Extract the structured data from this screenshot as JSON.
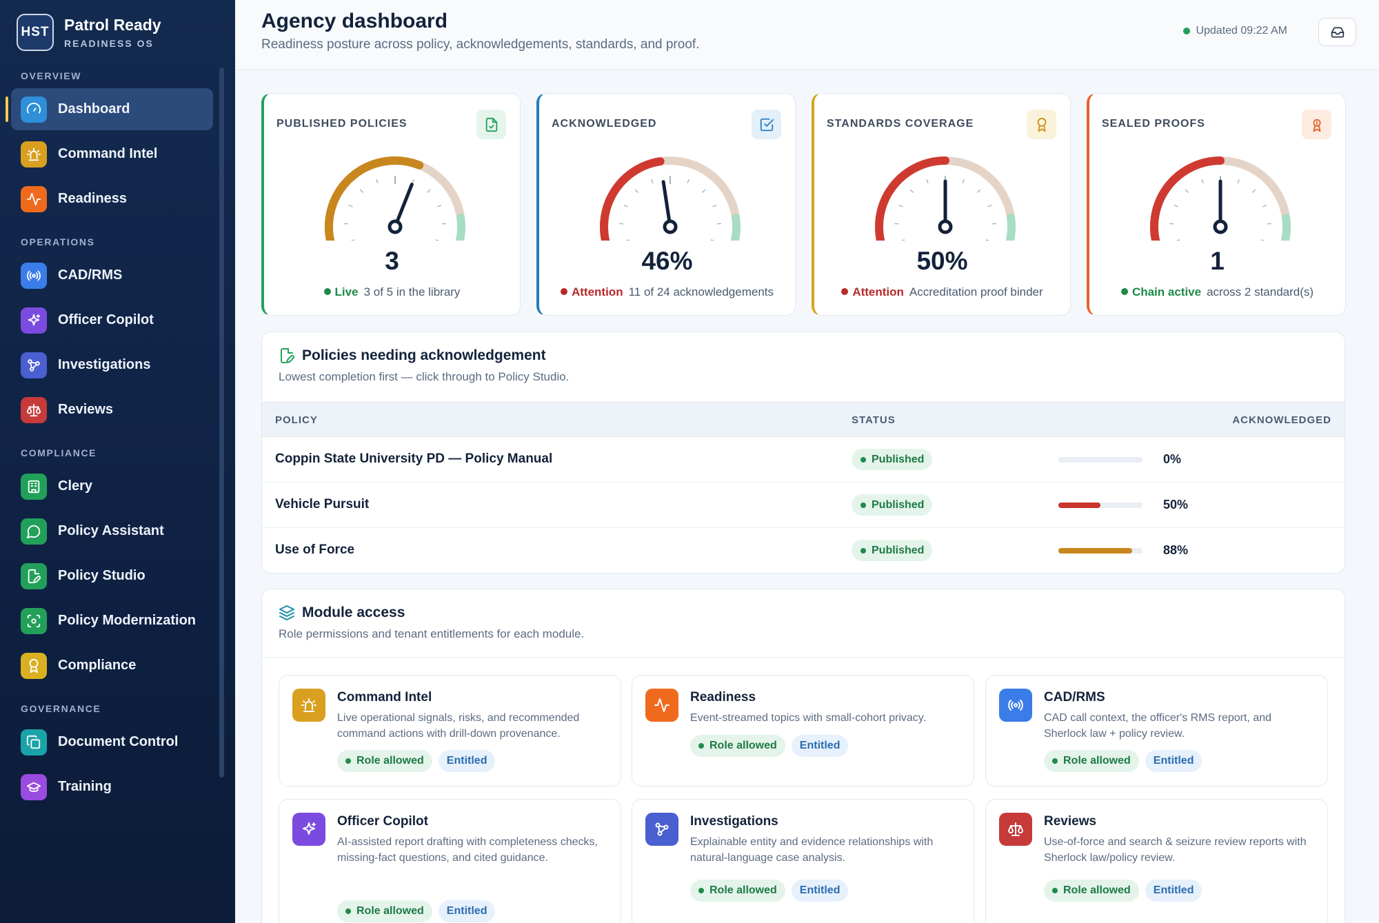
{
  "brand": {
    "logo_text": "HST",
    "title": "Patrol Ready",
    "subtitle": "READINESS OS"
  },
  "sidebar": {
    "sections": [
      {
        "label": "OVERVIEW",
        "items": [
          {
            "label": "Dashboard",
            "icon": "gauge-icon",
            "color": "#2f8fd8",
            "active": true
          },
          {
            "label": "Command Intel",
            "icon": "siren-icon",
            "color": "#d9a020"
          },
          {
            "label": "Readiness",
            "icon": "activity-icon",
            "color": "#f06a1d"
          }
        ]
      },
      {
        "label": "OPERATIONS",
        "items": [
          {
            "label": "CAD/RMS",
            "icon": "radio-icon",
            "color": "#3b7de8"
          },
          {
            "label": "Officer Copilot",
            "icon": "sparkles-icon",
            "color": "#7b4be0"
          },
          {
            "label": "Investigations",
            "icon": "network-icon",
            "color": "#4a5fd0"
          },
          {
            "label": "Reviews",
            "icon": "scale-icon",
            "color": "#c63a3a"
          }
        ]
      },
      {
        "label": "COMPLIANCE",
        "items": [
          {
            "label": "Clery",
            "icon": "building-icon",
            "color": "#22a05a"
          },
          {
            "label": "Policy Assistant",
            "icon": "chat-icon",
            "color": "#22a05a"
          },
          {
            "label": "Policy Studio",
            "icon": "file-edit-icon",
            "color": "#22a05a"
          },
          {
            "label": "Policy Modernization",
            "icon": "scan-icon",
            "color": "#22a05a"
          },
          {
            "label": "Compliance",
            "icon": "award-icon",
            "color": "#d9b020"
          }
        ]
      },
      {
        "label": "GOVERNANCE",
        "items": [
          {
            "label": "Document Control",
            "icon": "copy-icon",
            "color": "#1aa3a8"
          },
          {
            "label": "Training",
            "icon": "graduation-cap-icon",
            "color": "#9a4be0"
          }
        ]
      }
    ]
  },
  "header": {
    "title": "Agency dashboard",
    "subtitle": "Readiness posture across policy, acknowledgements, standards, and proof.",
    "updated": "Updated 09:22 AM"
  },
  "kpis": [
    {
      "label": "PUBLISHED POLICIES",
      "value": "3",
      "level": 0.6,
      "status": "Live",
      "status_color": "#1d8a48",
      "detail": "3 of 5 in the library",
      "accent": "#22a05a",
      "arc_color": "#c8861e",
      "icon": "file-check-icon",
      "icon_color": "#22a05a",
      "icon_bg": "#e6f5ec"
    },
    {
      "label": "ACKNOWLEDGED",
      "value": "46%",
      "level": 0.46,
      "status": "Attention",
      "status_color": "#b9282a",
      "detail": "11 of 24 acknowledgements",
      "accent": "#1e7fb8",
      "arc_color": "#cf3a30",
      "icon": "check-square-icon",
      "icon_color": "#2b7fc2",
      "icon_bg": "#e3f0fa"
    },
    {
      "label": "STANDARDS COVERAGE",
      "value": "50%",
      "level": 0.5,
      "status": "Attention",
      "status_color": "#b9282a",
      "detail": "Accreditation proof binder",
      "accent": "#d9a41e",
      "arc_color": "#cf3a30",
      "icon": "award-icon",
      "icon_color": "#c99312",
      "icon_bg": "#fbf2dc"
    },
    {
      "label": "SEALED PROOFS",
      "value": "1",
      "level": 0.5,
      "status": "Chain active",
      "status_color": "#1d8a48",
      "detail": "across 2 standard(s)",
      "accent": "#e8622a",
      "arc_color": "#cf3a30",
      "icon": "ribbon-icon",
      "icon_color": "#e0622a",
      "icon_bg": "#fdebe2"
    }
  ],
  "policies": {
    "title": "Policies needing acknowledgement",
    "subtitle": "Lowest completion first — click through to Policy Studio.",
    "columns": [
      "POLICY",
      "STATUS",
      "ACKNOWLEDGED"
    ],
    "rows": [
      {
        "name": "Coppin State University PD — Policy Manual",
        "status": "Published",
        "percent": 0,
        "percent_label": "0%",
        "bar_color": "#cf3a30"
      },
      {
        "name": "Vehicle Pursuit",
        "status": "Published",
        "percent": 50,
        "percent_label": "50%",
        "bar_color": "#c9342c"
      },
      {
        "name": "Use of Force",
        "status": "Published",
        "percent": 88,
        "percent_label": "88%",
        "bar_color": "#c8861e"
      }
    ]
  },
  "modules": {
    "title": "Module access",
    "subtitle": "Role permissions and tenant entitlements for each module.",
    "role_label": "Role allowed",
    "entitled_label": "Entitled",
    "items": [
      {
        "title": "Command Intel",
        "desc": "Live operational signals, risks, and recommended command actions with drill-down provenance.",
        "icon": "siren-icon",
        "color": "#d9a020"
      },
      {
        "title": "Readiness",
        "desc": "Event-streamed topics with small-cohort privacy.",
        "icon": "activity-icon",
        "color": "#f06a1d"
      },
      {
        "title": "CAD/RMS",
        "desc": "CAD call context, the officer's RMS report, and Sherlock law + policy review.",
        "icon": "radio-icon",
        "color": "#3b7de8"
      },
      {
        "title": "Officer Copilot",
        "desc": "AI-assisted report drafting with completeness checks, missing-fact questions, and cited guidance.",
        "icon": "sparkles-icon",
        "color": "#7b4be0"
      },
      {
        "title": "Investigations",
        "desc": "Explainable entity and evidence relationships with natural-language case analysis.",
        "icon": "network-icon",
        "color": "#4a5fd0"
      },
      {
        "title": "Reviews",
        "desc": "Use-of-force and search & seizure review reports with Sherlock law/policy review.",
        "icon": "scale-icon",
        "color": "#c63a3a"
      }
    ]
  }
}
